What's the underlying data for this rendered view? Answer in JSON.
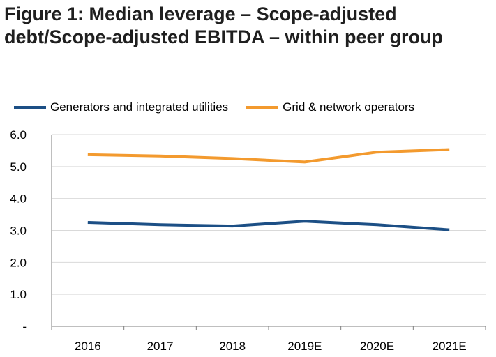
{
  "figure": {
    "title": "Figure 1: Median leverage – Scope-adjusted debt/Scope-adjusted EBITDA – within peer group"
  },
  "chart_data": {
    "type": "line",
    "categories": [
      "2016",
      "2017",
      "2018",
      "2019E",
      "2020E",
      "2021E"
    ],
    "series": [
      {
        "name": "Generators and integrated utilities",
        "color": "#1c4f85",
        "values": [
          3.25,
          3.18,
          3.14,
          3.29,
          3.18,
          3.02
        ]
      },
      {
        "name": "Grid & network operators",
        "color": "#f39a2e",
        "values": [
          5.37,
          5.33,
          5.25,
          5.14,
          5.45,
          5.53
        ]
      }
    ],
    "ylim": [
      0,
      6
    ],
    "y_ticks": [
      0,
      1,
      2,
      3,
      4,
      5,
      6
    ],
    "y_tick_labels": [
      "-",
      "1.0",
      "2.0",
      "3.0",
      "4.0",
      "5.0",
      "6.0"
    ],
    "grid": true,
    "legend_position": "top",
    "grid_color": "#d9d9d9",
    "axis_color": "#7f7f7f"
  }
}
